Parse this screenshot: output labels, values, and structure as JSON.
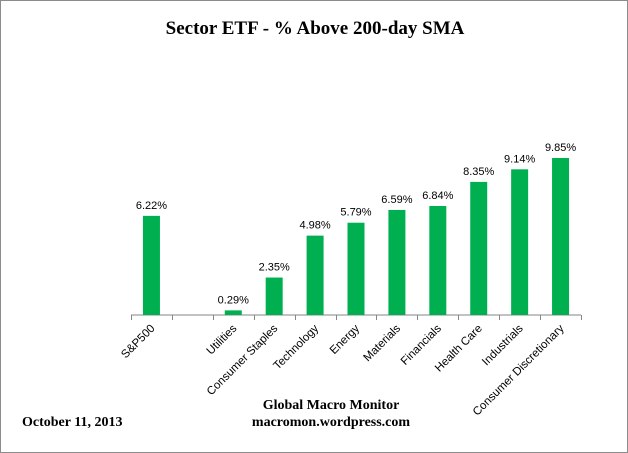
{
  "chart_data": {
    "type": "bar",
    "title": "Sector ETF - % Above 200-day SMA",
    "categories": [
      "S&P500",
      "",
      "Utilities",
      "Consumer Staples",
      "Technology",
      "Energy",
      "Materials",
      "Financials",
      "Health Care",
      "Industrials",
      "Consumer Discretionary"
    ],
    "values": [
      6.22,
      null,
      0.29,
      2.35,
      4.98,
      5.79,
      6.59,
      6.84,
      8.35,
      9.14,
      9.85
    ],
    "data_labels": [
      "6.22%",
      "",
      "0.29%",
      "2.35%",
      "4.98%",
      "5.79%",
      "6.59%",
      "6.84%",
      "8.35%",
      "9.14%",
      "9.85%"
    ],
    "xlabel": "",
    "ylabel": "",
    "ylim": [
      0,
      10
    ],
    "grid": false,
    "legend": "none",
    "bar_color": "#00b050"
  },
  "credit": {
    "line1": "Global Macro Monitor",
    "line2": "macromon.wordpress.com"
  },
  "date": "October 11, 2013"
}
